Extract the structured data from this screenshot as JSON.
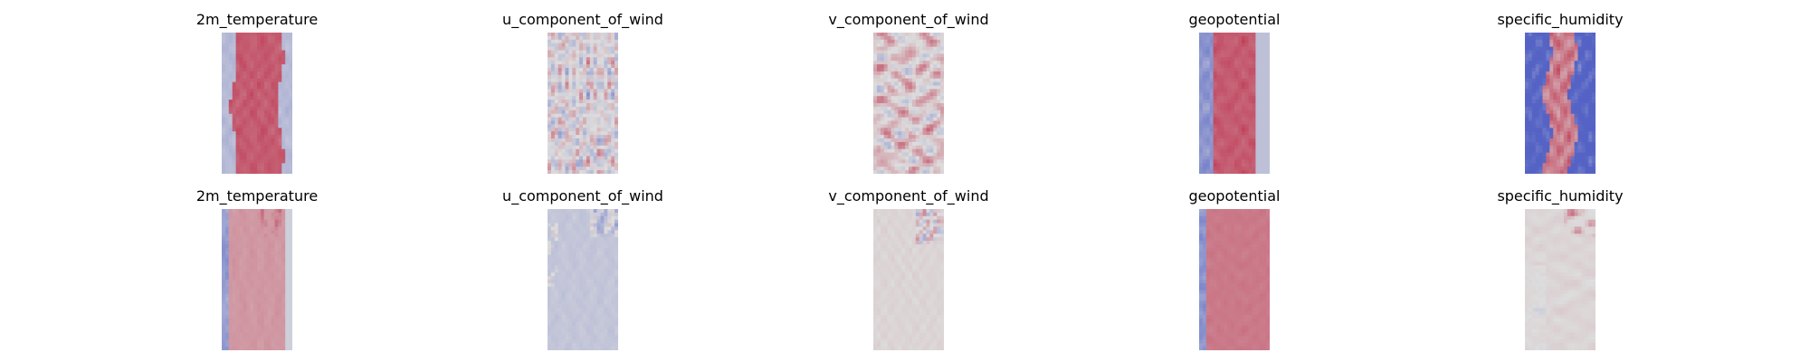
{
  "chart_data": [
    {
      "type": "heatmap",
      "rows": [
        {
          "panels": [
            {
              "title": "2m_temperature",
              "pattern": "temp"
            },
            {
              "title": "u_component_of_wind",
              "pattern": "uwind"
            },
            {
              "title": "v_component_of_wind",
              "pattern": "vwind"
            },
            {
              "title": "geopotential",
              "pattern": "geo"
            },
            {
              "title": "specific_humidity",
              "pattern": "humid"
            }
          ]
        },
        {
          "panels": [
            {
              "title": "2m_temperature",
              "pattern": "temp_err"
            },
            {
              "title": "u_component_of_wind",
              "pattern": "uwind_err"
            },
            {
              "title": "v_component_of_wind",
              "pattern": "vwind_err"
            },
            {
              "title": "geopotential",
              "pattern": "geo_err"
            },
            {
              "title": "specific_humidity",
              "pattern": "humid_err"
            }
          ]
        }
      ],
      "colormap": "coolwarm",
      "colormap_colors": [
        "#3b4cc0",
        "#dddddd",
        "#b40426"
      ],
      "axes": "off"
    }
  ]
}
